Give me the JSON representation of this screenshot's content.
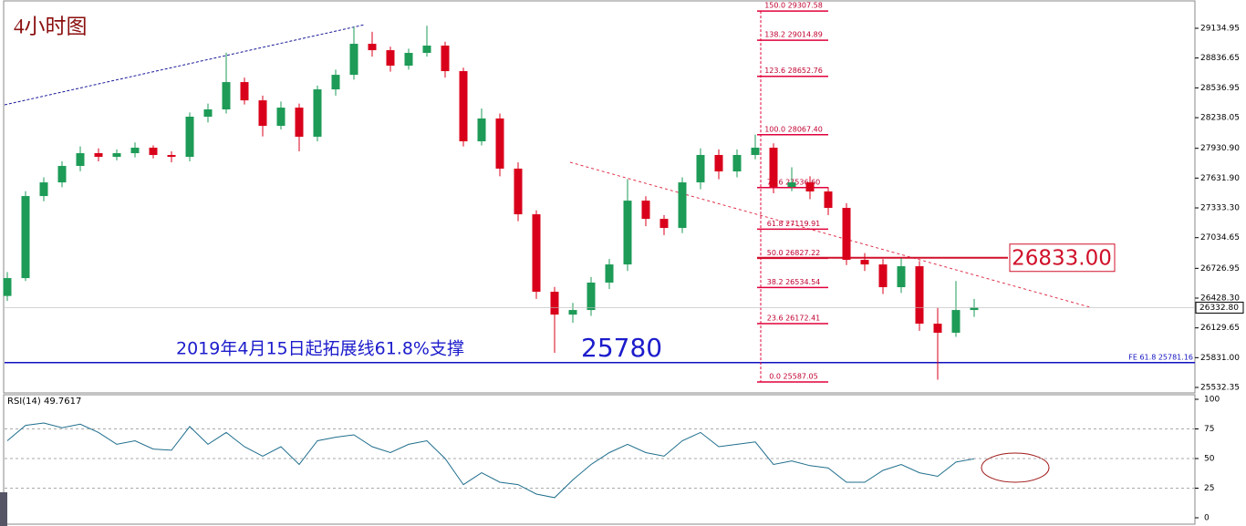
{
  "chart_data": [
    {
      "type": "candlestick",
      "title": "4小时图",
      "open": [
        26450,
        26629,
        27452,
        27589,
        27754,
        27882,
        27845,
        27882,
        27937,
        27864,
        27845,
        28248,
        28321,
        28595,
        28412,
        28156,
        28339,
        28047,
        28522,
        28668,
        28979,
        28915,
        28760,
        28888,
        28961,
        28705,
        28001,
        28230,
        27727,
        27269,
        26492,
        26263,
        26309,
        26584,
        26766,
        27406,
        27223,
        27132,
        27589,
        27864,
        27699,
        27864,
        27937,
        27544,
        27589,
        27498,
        27333,
        26812,
        26766,
        26538,
        26748,
        26172,
        26081,
        26309
      ],
      "high": [
        26690,
        27500,
        27640,
        27800,
        27950,
        27930,
        27920,
        27990,
        27960,
        27900,
        28290,
        28380,
        28890,
        28640,
        28460,
        28400,
        28380,
        28560,
        28720,
        29150,
        29100,
        28950,
        28930,
        29160,
        29000,
        28740,
        28330,
        28280,
        27790,
        27310,
        26540,
        26380,
        26640,
        26820,
        27620,
        27450,
        27260,
        27640,
        27930,
        27920,
        27920,
        28068,
        27980,
        27740,
        27650,
        27540,
        27380,
        26880,
        26820,
        26830,
        26800,
        26330,
        26600,
        26420
      ],
      "low": [
        26400,
        26600,
        27400,
        27540,
        27700,
        27800,
        27810,
        27840,
        27830,
        27790,
        27800,
        28190,
        28280,
        28370,
        28050,
        28120,
        27900,
        28000,
        28460,
        28620,
        28850,
        28700,
        28720,
        28850,
        28640,
        27950,
        27960,
        27650,
        27200,
        26420,
        25880,
        26180,
        26250,
        26520,
        26700,
        27150,
        27060,
        27080,
        27520,
        27620,
        27640,
        27820,
        27480,
        27500,
        27420,
        27260,
        26760,
        26700,
        26470,
        26480,
        26100,
        25610,
        26040,
        26240
      ],
      "close": [
        26629,
        27452,
        27589,
        27754,
        27882,
        27845,
        27882,
        27937,
        27864,
        27845,
        28248,
        28321,
        28595,
        28412,
        28156,
        28339,
        28047,
        28522,
        28668,
        28979,
        28915,
        28760,
        28888,
        28961,
        28705,
        28001,
        28230,
        27727,
        27269,
        26492,
        26263,
        26309,
        26584,
        26766,
        27406,
        27223,
        27132,
        27589,
        27864,
        27699,
        27864,
        27937,
        27544,
        27589,
        27498,
        27333,
        26812,
        26766,
        26538,
        26748,
        26172,
        26081,
        26309,
        26332.8
      ],
      "up_color": "#1d9b57",
      "down_color": "#d9001b",
      "ylim": [
        25486.6,
        29418.4
      ],
      "yticks": [
        29134.95,
        28836.65,
        28536.95,
        28238.05,
        {
          "value": 27930.9,
          "label": "27930.90"
        },
        {
          "value": 27631.9,
          "label": "27631.90"
        },
        {
          "value": 27333.3,
          "label": "27333.30"
        },
        27034.65,
        26726.95,
        {
          "value": 26428.3,
          "label": "26428.30"
        },
        26129.65,
        {
          "value": 25831,
          "label": "25831.00"
        },
        25532.35
      ],
      "last_price": {
        "value": 26332.8,
        "label": "26332.80"
      },
      "fib_levels": [
        {
          "value": 29307.58,
          "label": "150.0  29307.58"
        },
        {
          "value": 29014.89,
          "label": "138.2  29014.89"
        },
        {
          "value": 28652.76,
          "label": "123.6  28652.76"
        },
        {
          "value": 28067.4,
          "label": "100.0  28067.40"
        },
        {
          "value": 27536.6,
          "label": "78.6  27536.60"
        },
        {
          "value": 27119.91,
          "label": "61.8  27119.91"
        },
        {
          "value": 26827.22,
          "label": "50.0  26827.22"
        },
        {
          "value": 26534.54,
          "label": "38.2  26534.54"
        },
        {
          "value": 26172.41,
          "label": "23.6  26172.41"
        },
        {
          "value": 25587.05,
          "label": "0.0  25587.05"
        }
      ],
      "resistance": {
        "value": 26833,
        "label": "26833.00"
      },
      "support": {
        "value": 25781.16,
        "label": "FE 61.8  25781.16"
      },
      "support_note": "2019年4月15日起拓展线61.8%支撑",
      "support_price": "25780"
    },
    {
      "type": "line",
      "label": "RSI(14) 49.7617",
      "color": "#1f6e8c",
      "values": [
        65,
        78,
        80,
        76,
        79,
        72,
        62,
        65,
        58,
        57,
        77,
        62,
        72,
        60,
        52,
        60,
        45,
        65,
        68,
        70,
        60,
        55,
        62,
        65,
        50,
        28,
        38,
        30,
        28,
        20,
        17,
        32,
        45,
        55,
        62,
        55,
        52,
        65,
        72,
        60,
        62,
        64,
        45,
        48,
        44,
        42,
        30,
        30,
        40,
        45,
        38,
        35,
        47,
        49.7617
      ],
      "ylim": [
        0,
        100
      ],
      "yticks": [
        100,
        75,
        50,
        25,
        0
      ]
    }
  ]
}
